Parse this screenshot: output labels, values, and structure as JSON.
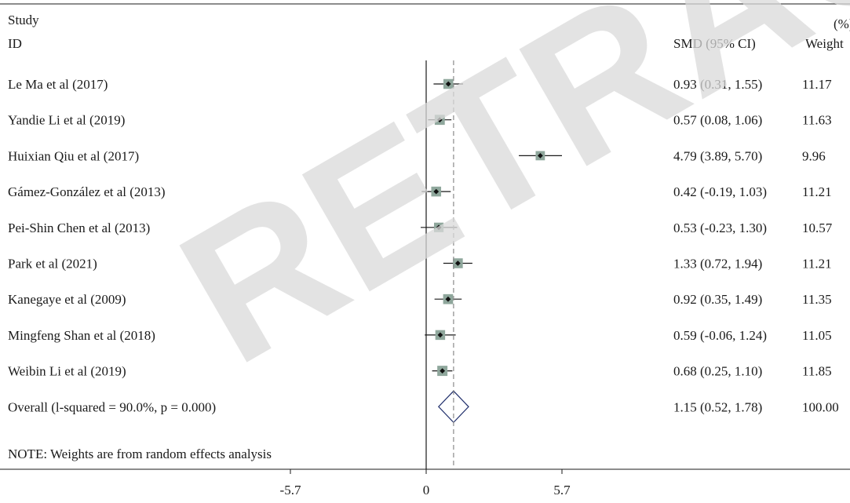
{
  "chart_data": {
    "type": "forest",
    "headers": {
      "study_line1": "Study",
      "study_line2": "ID",
      "effect": "SMD (95% CI)",
      "weight_line1": "(%)",
      "weight_line2": "Weight"
    },
    "studies": [
      {
        "label": "Le Ma et al (2017)",
        "smd": 0.93,
        "lower": 0.31,
        "upper": 1.55,
        "ci_text": "0.93 (0.31, 1.55)",
        "weight": 11.17,
        "weight_text": "11.17"
      },
      {
        "label": "Yandie Li et al (2019)",
        "smd": 0.57,
        "lower": 0.08,
        "upper": 1.06,
        "ci_text": "0.57 (0.08, 1.06)",
        "weight": 11.63,
        "weight_text": "11.63"
      },
      {
        "label": "Huixian Qiu et al (2017)",
        "smd": 4.79,
        "lower": 3.89,
        "upper": 5.7,
        "ci_text": "4.79 (3.89, 5.70)",
        "weight": 9.96,
        "weight_text": "9.96"
      },
      {
        "label": "Gámez-González et al (2013)",
        "smd": 0.42,
        "lower": -0.19,
        "upper": 1.03,
        "ci_text": "0.42 (-0.19, 1.03)",
        "weight": 11.21,
        "weight_text": "11.21"
      },
      {
        "label": "Pei-Shin Chen et al (2013)",
        "smd": 0.53,
        "lower": -0.23,
        "upper": 1.3,
        "ci_text": "0.53 (-0.23, 1.30)",
        "weight": 10.57,
        "weight_text": "10.57"
      },
      {
        "label": "Park et al (2021)",
        "smd": 1.33,
        "lower": 0.72,
        "upper": 1.94,
        "ci_text": "1.33 (0.72, 1.94)",
        "weight": 11.21,
        "weight_text": "11.21"
      },
      {
        "label": "Kanegaye et al (2009)",
        "smd": 0.92,
        "lower": 0.35,
        "upper": 1.49,
        "ci_text": "0.92 (0.35, 1.49)",
        "weight": 11.35,
        "weight_text": "11.35"
      },
      {
        "label": "Mingfeng Shan et al (2018)",
        "smd": 0.59,
        "lower": -0.06,
        "upper": 1.24,
        "ci_text": "0.59 (-0.06, 1.24)",
        "weight": 11.05,
        "weight_text": "11.05"
      },
      {
        "label": "Weibin Li et al (2019)",
        "smd": 0.68,
        "lower": 0.25,
        "upper": 1.1,
        "ci_text": "0.68 (0.25, 1.10)",
        "weight": 11.85,
        "weight_text": "11.85"
      }
    ],
    "overall": {
      "label": "Overall (l-squared = 90.0%, p = 0.000)",
      "smd": 1.15,
      "lower": 0.52,
      "upper": 1.78,
      "ci_text": "1.15 (0.52, 1.78)",
      "weight_text": "100.00"
    },
    "note": "NOTE: Weights are from random effects analysis",
    "x_ticks": [
      {
        "value": -5.7,
        "label": "-5.7"
      },
      {
        "value": 0,
        "label": "0"
      },
      {
        "value": 5.7,
        "label": "5.7"
      }
    ],
    "xlim": [
      -5.7,
      5.7
    ],
    "null_line": 0,
    "colors": {
      "box": "#8fa79c",
      "diamond_stroke": "#1f2e6b",
      "dashed": "#8a8a8a",
      "watermark": "#d9d9d9"
    }
  },
  "watermark": {
    "text": "RETRACTED"
  }
}
